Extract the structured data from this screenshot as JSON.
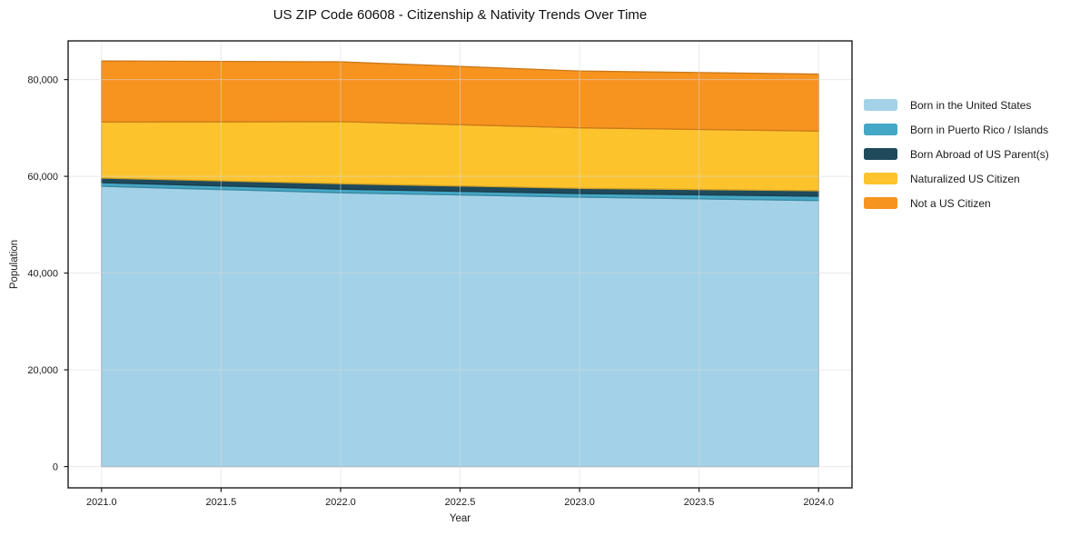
{
  "chart_data": {
    "type": "area",
    "stacked": true,
    "title": "US ZIP Code 60608 - Citizenship & Nativity Trends Over Time",
    "xlabel": "Year",
    "ylabel": "Population",
    "x": [
      2021,
      2022,
      2023,
      2024
    ],
    "series": [
      {
        "name": "Born in the United States",
        "color": "#a3d2e8",
        "values": [
          57950,
          56600,
          55700,
          55000
        ]
      },
      {
        "name": "Born in Puerto Rico / Islands",
        "color": "#45a7c6",
        "values": [
          750,
          750,
          750,
          890
        ]
      },
      {
        "name": "Born Abroad of US Parent(s)",
        "color": "#1e4a5c",
        "values": [
          940,
          1130,
          1070,
          1130
        ]
      },
      {
        "name": "Naturalized US Citizen",
        "color": "#fcc32d",
        "values": [
          11600,
          12830,
          12510,
          12340
        ]
      },
      {
        "name": "Not a US Citizen",
        "color": "#f7941f",
        "values": [
          12600,
          12360,
          11740,
          11770
        ]
      }
    ],
    "totals": [
      83840,
      83670,
      81770,
      81130
    ],
    "x_ticks": [
      2021.0,
      2021.5,
      2022.0,
      2022.5,
      2023.0,
      2023.5,
      2024.0
    ],
    "x_tick_labels": [
      "2021.0",
      "2021.5",
      "2022.0",
      "2022.5",
      "2023.0",
      "2023.5",
      "2024.0"
    ],
    "y_ticks": [
      0,
      20000,
      40000,
      60000,
      80000
    ],
    "y_tick_labels": [
      "0",
      "20,000",
      "40,000",
      "60,000",
      "80,000"
    ],
    "xlim": [
      2020.86,
      2024.14
    ],
    "ylim": [
      -4400,
      88000
    ],
    "grid": true,
    "legend_position": "right",
    "colors": {
      "spine": "#1c1c1c",
      "grid": "#d9d9d9",
      "text": "#1a1a1a",
      "background": "#ffffff"
    }
  }
}
